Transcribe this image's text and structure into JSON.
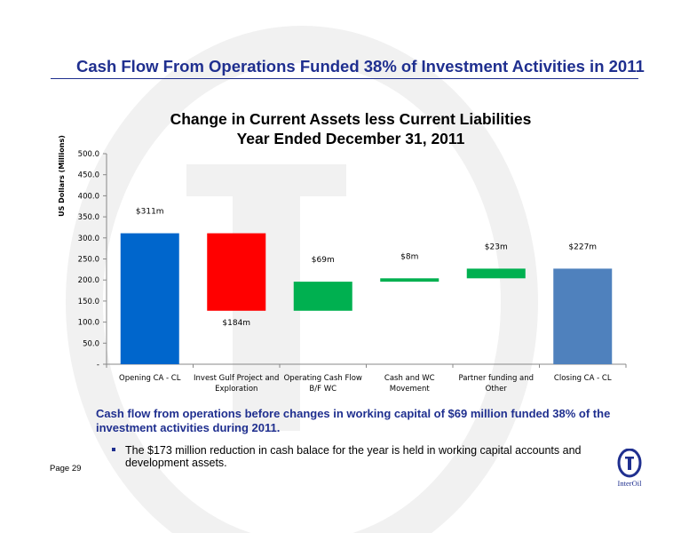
{
  "slide": {
    "title": "Cash Flow From Operations Funded 38% of Investment Activities in 2011",
    "summary": "Cash flow from operations before changes in working capital of $69 million funded 38% of the investment activities during 2011.",
    "bullet": "The $173 million reduction in cash balace for the year is held in working capital accounts and development assets.",
    "page_label": "Page 29",
    "logo_text": "InterOil"
  },
  "colors": {
    "title_blue": "#1f2f8f",
    "opening": "#0066cc",
    "negative": "#ff0000",
    "positive": "#00b050",
    "closing": "#4f81bd"
  },
  "chart_data": {
    "type": "bar",
    "subtype": "waterfall",
    "title": "Change in Current Assets less Current Liabilities",
    "subtitle": "Year Ended December 31, 2011",
    "xlabel": "",
    "ylabel": "US Dollars (Millions)",
    "ylim": [
      0,
      500
    ],
    "yticks": [
      0,
      50,
      100,
      150,
      200,
      250,
      300,
      350,
      400,
      450,
      500
    ],
    "ytick_labels": [
      "-",
      "50.0",
      "100.0",
      "150.0",
      "200.0",
      "250.0",
      "300.0",
      "350.0",
      "400.0",
      "450.0",
      "500.0"
    ],
    "grid": false,
    "legend": "none",
    "bars": [
      {
        "category": [
          "Opening CA -  CL"
        ],
        "start": 0,
        "end": 311,
        "label": "$311m",
        "label_position": "above",
        "kind": "opening"
      },
      {
        "category": [
          "Invest Gulf Project and",
          "Exploration"
        ],
        "start": 311,
        "end": 127,
        "label": "$184m",
        "label_position": "below",
        "kind": "negative"
      },
      {
        "category": [
          "Operating Cash Flow",
          "B/F WC"
        ],
        "start": 127,
        "end": 196,
        "label": "$69m",
        "label_position": "above",
        "kind": "positive"
      },
      {
        "category": [
          "Cash and WC",
          "Movement"
        ],
        "start": 196,
        "end": 204,
        "label": "$8m",
        "label_position": "above",
        "kind": "positive"
      },
      {
        "category": [
          "Partner funding and",
          "Other"
        ],
        "start": 204,
        "end": 227,
        "label": "$23m",
        "label_position": "above",
        "kind": "positive"
      },
      {
        "category": [
          "Closing CA -  CL"
        ],
        "start": 0,
        "end": 227,
        "label": "$227m",
        "label_position": "above",
        "kind": "closing"
      }
    ]
  }
}
